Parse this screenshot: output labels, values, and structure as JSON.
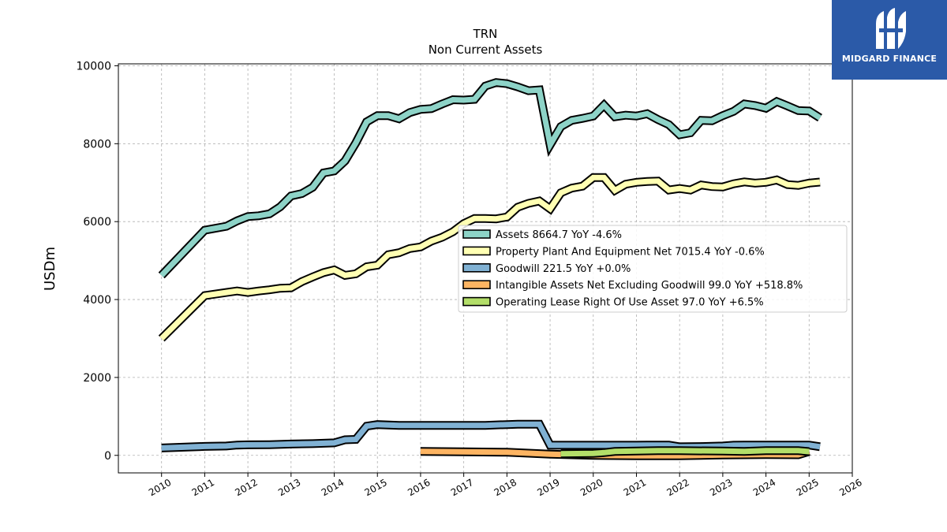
{
  "chart_data": {
    "type": "line",
    "title": "TRN",
    "subtitle": "Non Current  Assets",
    "ylabel": "USDm",
    "xlabel": "",
    "xlim": [
      2009.0,
      2026.0
    ],
    "ylim": [
      -450,
      10050
    ],
    "x_ticks": [
      "2010",
      "2011",
      "2012",
      "2013",
      "2014",
      "2015",
      "2016",
      "2017",
      "2018",
      "2019",
      "2020",
      "2021",
      "2022",
      "2023",
      "2024",
      "2025",
      "2026"
    ],
    "y_ticks": [
      "0",
      "2000",
      "4000",
      "6000",
      "8000",
      "10000"
    ],
    "grid": true,
    "legend_position": "center-right",
    "series": [
      {
        "name": "Assets",
        "legend": "Assets  8664.7 YoY -4.6%",
        "color": "#8dd3c7",
        "points": [
          [
            2010.0,
            4620
          ],
          [
            2011.0,
            5780
          ],
          [
            2011.5,
            5880
          ],
          [
            2011.75,
            6020
          ],
          [
            2012.0,
            6130
          ],
          [
            2012.25,
            6150
          ],
          [
            2012.5,
            6200
          ],
          [
            2012.75,
            6380
          ],
          [
            2013.0,
            6660
          ],
          [
            2013.25,
            6720
          ],
          [
            2013.5,
            6880
          ],
          [
            2013.75,
            7250
          ],
          [
            2014.0,
            7300
          ],
          [
            2014.25,
            7560
          ],
          [
            2014.5,
            8020
          ],
          [
            2014.75,
            8560
          ],
          [
            2015.0,
            8720
          ],
          [
            2015.25,
            8720
          ],
          [
            2015.5,
            8640
          ],
          [
            2015.75,
            8800
          ],
          [
            2016.0,
            8880
          ],
          [
            2016.25,
            8900
          ],
          [
            2016.5,
            9020
          ],
          [
            2016.75,
            9130
          ],
          [
            2017.0,
            9120
          ],
          [
            2017.25,
            9140
          ],
          [
            2017.5,
            9480
          ],
          [
            2017.75,
            9570
          ],
          [
            2018.0,
            9540
          ],
          [
            2018.25,
            9460
          ],
          [
            2018.5,
            9360
          ],
          [
            2018.75,
            9380
          ],
          [
            2019.0,
            7970
          ],
          [
            2019.25,
            8440
          ],
          [
            2019.5,
            8600
          ],
          [
            2019.75,
            8650
          ],
          [
            2020.0,
            8710
          ],
          [
            2020.25,
            8990
          ],
          [
            2020.5,
            8690
          ],
          [
            2020.75,
            8730
          ],
          [
            2021.0,
            8710
          ],
          [
            2021.25,
            8770
          ],
          [
            2021.5,
            8620
          ],
          [
            2021.75,
            8490
          ],
          [
            2022.0,
            8230
          ],
          [
            2022.25,
            8280
          ],
          [
            2022.5,
            8600
          ],
          [
            2022.75,
            8590
          ],
          [
            2023.0,
            8720
          ],
          [
            2023.25,
            8830
          ],
          [
            2023.5,
            9020
          ],
          [
            2023.75,
            8980
          ],
          [
            2024.0,
            8910
          ],
          [
            2024.25,
            9080
          ],
          [
            2024.5,
            8970
          ],
          [
            2024.75,
            8850
          ],
          [
            2025.0,
            8840
          ],
          [
            2025.25,
            8665
          ]
        ]
      },
      {
        "name": "Property Plant And Equipment Net",
        "legend": "Property Plant And Equipment Net  7015.4 YoY -0.6%",
        "color": "#ffffb3",
        "points": [
          [
            2010.0,
            3000
          ],
          [
            2011.0,
            4100
          ],
          [
            2011.5,
            4180
          ],
          [
            2011.75,
            4220
          ],
          [
            2012.0,
            4180
          ],
          [
            2012.25,
            4220
          ],
          [
            2012.5,
            4250
          ],
          [
            2012.75,
            4290
          ],
          [
            2013.0,
            4300
          ],
          [
            2013.25,
            4460
          ],
          [
            2013.5,
            4580
          ],
          [
            2013.75,
            4690
          ],
          [
            2014.0,
            4760
          ],
          [
            2014.25,
            4620
          ],
          [
            2014.5,
            4660
          ],
          [
            2014.75,
            4840
          ],
          [
            2015.0,
            4880
          ],
          [
            2015.25,
            5150
          ],
          [
            2015.5,
            5200
          ],
          [
            2015.75,
            5310
          ],
          [
            2016.0,
            5350
          ],
          [
            2016.25,
            5500
          ],
          [
            2016.5,
            5600
          ],
          [
            2016.75,
            5740
          ],
          [
            2017.0,
            5950
          ],
          [
            2017.25,
            6080
          ],
          [
            2017.5,
            6080
          ],
          [
            2017.75,
            6070
          ],
          [
            2018.0,
            6120
          ],
          [
            2018.25,
            6370
          ],
          [
            2018.5,
            6470
          ],
          [
            2018.75,
            6530
          ],
          [
            2019.0,
            6330
          ],
          [
            2019.25,
            6740
          ],
          [
            2019.5,
            6860
          ],
          [
            2019.75,
            6910
          ],
          [
            2020.0,
            7130
          ],
          [
            2020.25,
            7130
          ],
          [
            2020.5,
            6800
          ],
          [
            2020.75,
            6960
          ],
          [
            2021.0,
            7010
          ],
          [
            2021.25,
            7030
          ],
          [
            2021.5,
            7040
          ],
          [
            2021.75,
            6810
          ],
          [
            2022.0,
            6850
          ],
          [
            2022.25,
            6810
          ],
          [
            2022.5,
            6940
          ],
          [
            2022.75,
            6900
          ],
          [
            2023.0,
            6890
          ],
          [
            2023.25,
            6970
          ],
          [
            2023.5,
            7020
          ],
          [
            2023.75,
            6990
          ],
          [
            2024.0,
            7010
          ],
          [
            2024.25,
            7070
          ],
          [
            2024.5,
            6950
          ],
          [
            2024.75,
            6930
          ],
          [
            2025.0,
            6990
          ],
          [
            2025.25,
            7015
          ]
        ]
      },
      {
        "name": "Goodwill",
        "legend": "Goodwill  221.5 YoY +0.0%",
        "color": "#80b1d3",
        "points": [
          [
            2010.0,
            190
          ],
          [
            2011.0,
            230
          ],
          [
            2011.5,
            240
          ],
          [
            2011.75,
            265
          ],
          [
            2012.0,
            270
          ],
          [
            2012.5,
            275
          ],
          [
            2013.0,
            290
          ],
          [
            2013.5,
            300
          ],
          [
            2014.0,
            320
          ],
          [
            2014.25,
            400
          ],
          [
            2014.5,
            410
          ],
          [
            2014.75,
            750
          ],
          [
            2015.0,
            790
          ],
          [
            2015.5,
            770
          ],
          [
            2016.0,
            770
          ],
          [
            2016.5,
            770
          ],
          [
            2017.0,
            770
          ],
          [
            2017.5,
            770
          ],
          [
            2018.0,
            790
          ],
          [
            2018.25,
            800
          ],
          [
            2018.75,
            800
          ],
          [
            2019.0,
            260
          ],
          [
            2019.5,
            260
          ],
          [
            2020.0,
            260
          ],
          [
            2020.5,
            260
          ],
          [
            2021.0,
            260
          ],
          [
            2021.25,
            265
          ],
          [
            2021.75,
            265
          ],
          [
            2022.0,
            220
          ],
          [
            2022.5,
            225
          ],
          [
            2023.0,
            240
          ],
          [
            2023.25,
            260
          ],
          [
            2023.5,
            265
          ],
          [
            2024.0,
            265
          ],
          [
            2024.5,
            265
          ],
          [
            2025.0,
            265
          ],
          [
            2025.25,
            221.5
          ]
        ]
      },
      {
        "name": "Intangible Assets Net Excluding Goodwill",
        "legend": "Intangible Assets Net Excluding Goodwill  99.0 YoY +518.8%",
        "color": "#fdb462",
        "points": [
          [
            2016.0,
            100
          ],
          [
            2017.0,
            90
          ],
          [
            2018.0,
            80
          ],
          [
            2019.0,
            30
          ],
          [
            2020.0,
            0
          ],
          [
            2021.0,
            -10
          ],
          [
            2022.0,
            -10
          ],
          [
            2023.0,
            10
          ],
          [
            2024.0,
            20
          ],
          [
            2024.75,
            15
          ],
          [
            2025.0,
            99
          ]
        ]
      },
      {
        "name": "Operating Lease Right Of Use Asset",
        "legend": "Operating Lease Right Of Use Asset  97.0 YoY +6.5%",
        "color": "#b3de69",
        "points": [
          [
            2019.25,
            40
          ],
          [
            2020.0,
            50
          ],
          [
            2020.25,
            70
          ],
          [
            2020.5,
            100
          ],
          [
            2021.0,
            110
          ],
          [
            2021.5,
            120
          ],
          [
            2022.0,
            120
          ],
          [
            2023.0,
            110
          ],
          [
            2023.5,
            100
          ],
          [
            2024.0,
            120
          ],
          [
            2024.75,
            120
          ],
          [
            2025.0,
            97
          ]
        ]
      }
    ]
  },
  "logo": {
    "text": "MIDGARD FINANCE",
    "name": "midgard-finance-logo"
  }
}
